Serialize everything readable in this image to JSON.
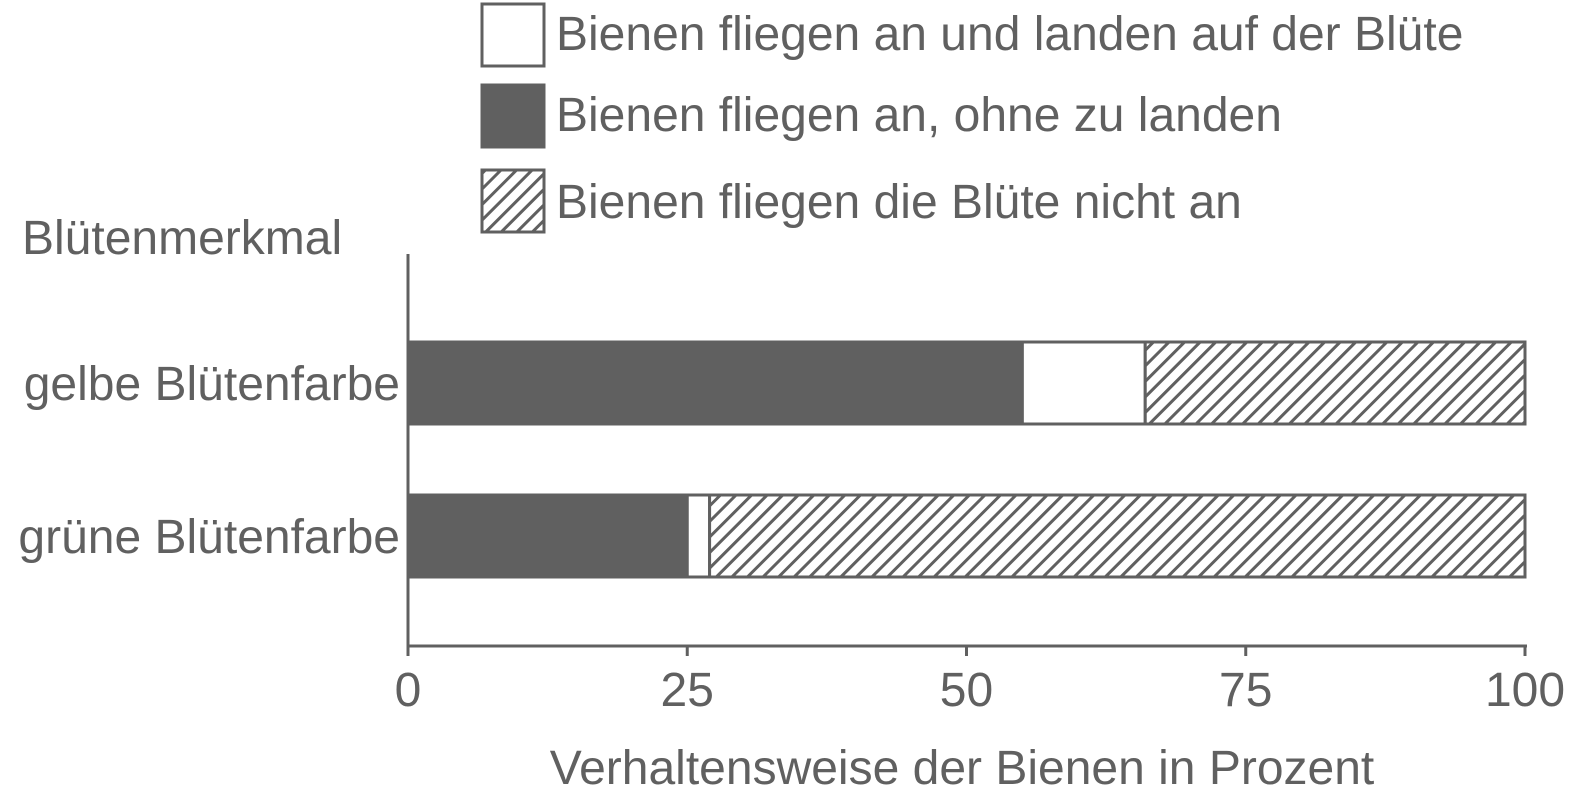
{
  "chart_data": {
    "type": "bar",
    "orientation": "horizontal",
    "stacked": true,
    "ylabel": "Blütenmerkmal",
    "xlabel": "Verhaltensweise der Bienen in Prozent",
    "categories": [
      "gelbe Blütenfarbe",
      "grüne Blütenfarbe"
    ],
    "stack_order": [
      1,
      0,
      2
    ],
    "series": [
      {
        "name": "Bienen fliegen an und landen auf der Blüte",
        "values": [
          11,
          2
        ],
        "fill": "white"
      },
      {
        "name": "Bienen fliegen an, ohne zu landen",
        "values": [
          55,
          25
        ],
        "fill": "solid"
      },
      {
        "name": "Bienen fliegen die Blüte nicht an",
        "values": [
          34,
          73
        ],
        "fill": "hatched"
      }
    ],
    "xlim": [
      0,
      100
    ],
    "xticks": [
      "0",
      "25",
      "50",
      "75",
      "100"
    ],
    "legend_position": "top",
    "grid": false
  },
  "colors": {
    "dark": "#606060",
    "white": "#ffffff"
  }
}
